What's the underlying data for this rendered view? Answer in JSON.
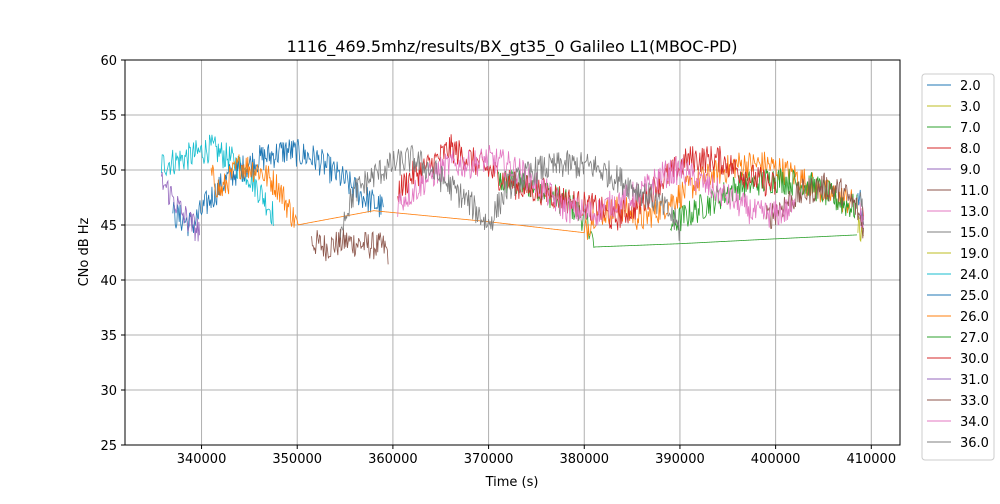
{
  "chart_data": {
    "type": "line",
    "title": "1116_469.5mhz/results/BX_gt35_0 Galileo L1(MBOC-PD)",
    "xlabel": "Time (s)",
    "ylabel": "CNo dB Hz",
    "xlim": [
      332000,
      413000
    ],
    "ylim": [
      25,
      60
    ],
    "xticks": [
      340000,
      350000,
      360000,
      370000,
      380000,
      390000,
      400000,
      410000
    ],
    "xtick_labels": [
      "340000",
      "350000",
      "360000",
      "370000",
      "380000",
      "390000",
      "400000",
      "410000"
    ],
    "yticks": [
      25,
      30,
      35,
      40,
      45,
      50,
      55,
      60
    ],
    "ytick_labels": [
      "25",
      "30",
      "35",
      "40",
      "45",
      "50",
      "55",
      "60"
    ],
    "grid": true,
    "legend_position": "right, outside plot area",
    "series": [
      {
        "name": "2.0",
        "color": "#1f77b4",
        "points": [
          [
            408600,
            47.5
          ],
          [
            409000,
            46.5
          ]
        ]
      },
      {
        "name": "3.0",
        "color": "#bcbd22",
        "points": [
          [
            408900,
            44.5
          ],
          [
            409100,
            43.5
          ]
        ]
      },
      {
        "name": "7.0",
        "color": "#2ca02c",
        "points": [
          [
            371000,
            49.0
          ],
          [
            375000,
            48.5
          ],
          [
            377000,
            47.5
          ],
          [
            379000,
            46.5
          ],
          [
            380500,
            45.0
          ],
          [
            381000,
            43.0
          ],
          [
            390000,
            43.3
          ],
          [
            399000,
            43.7
          ],
          [
            408500,
            44.1
          ]
        ]
      },
      {
        "name": "8.0",
        "color": "#d62728",
        "points": [
          [
            409000,
            46.0
          ],
          [
            409200,
            45.0
          ]
        ]
      },
      {
        "name": "9.0",
        "color": "#9467bd",
        "points": [
          [
            408800,
            46.5
          ],
          [
            409200,
            45.5
          ]
        ]
      },
      {
        "name": "11.0",
        "color": "#8c564b",
        "points": [
          [
            351500,
            43.5
          ],
          [
            353000,
            43.0
          ],
          [
            355000,
            43.5
          ],
          [
            357000,
            43.2
          ],
          [
            359000,
            43.0
          ],
          [
            359500,
            42.5
          ]
        ]
      },
      {
        "name": "13.0",
        "color": "#e377c2",
        "points": [
          [
            408800,
            46.0
          ],
          [
            409200,
            45.0
          ]
        ]
      },
      {
        "name": "15.0",
        "color": "#7f7f7f",
        "points": [
          [
            408800,
            47.0
          ],
          [
            409200,
            46.0
          ]
        ]
      },
      {
        "name": "19.0",
        "color": "#bcbd22",
        "points": [
          [
            408600,
            45.0
          ],
          [
            408900,
            44.0
          ],
          [
            409200,
            43.5
          ]
        ]
      },
      {
        "name": "24.0",
        "color": "#17becf",
        "points": [
          [
            335800,
            50.5
          ],
          [
            338000,
            51.0
          ],
          [
            341000,
            52.0
          ],
          [
            343000,
            51.0
          ],
          [
            345000,
            49.5
          ],
          [
            346500,
            47.5
          ],
          [
            347500,
            46.0
          ]
        ]
      },
      {
        "name": "25.0",
        "color": "#1f77b4",
        "points": [
          [
            337000,
            46.0
          ],
          [
            339000,
            45.0
          ],
          [
            341000,
            47.5
          ],
          [
            343000,
            49.5
          ],
          [
            346000,
            51.0
          ],
          [
            349000,
            51.8
          ],
          [
            352000,
            51.0
          ],
          [
            355000,
            49.0
          ],
          [
            357000,
            47.5
          ],
          [
            359000,
            46.5
          ]
        ]
      },
      {
        "name": "26.0",
        "color": "#ff7f0e",
        "points": [
          [
            341000,
            49.5
          ],
          [
            342000,
            48.0
          ],
          [
            344000,
            50.5
          ],
          [
            346000,
            50.0
          ],
          [
            348000,
            48.5
          ],
          [
            350000,
            45.0
          ],
          [
            358000,
            46.3
          ],
          [
            370000,
            45.3
          ],
          [
            380000,
            44.3
          ],
          [
            381000,
            46.0
          ],
          [
            384000,
            46.5
          ],
          [
            386000,
            45.5
          ],
          [
            388000,
            46.5
          ],
          [
            392000,
            49.0
          ],
          [
            396000,
            50.5
          ],
          [
            399000,
            50.5
          ],
          [
            402000,
            49.5
          ],
          [
            405000,
            48.0
          ],
          [
            408000,
            47.0
          ]
        ]
      },
      {
        "name": "27.0",
        "color": "#2ca02c",
        "points": [
          [
            389000,
            45.0
          ],
          [
            391000,
            46.0
          ],
          [
            393000,
            47.0
          ],
          [
            396000,
            48.5
          ],
          [
            400000,
            49.2
          ],
          [
            404000,
            48.5
          ],
          [
            407000,
            47.0
          ],
          [
            408500,
            46.5
          ]
        ]
      },
      {
        "name": "30.0",
        "color": "#d62728",
        "points": [
          [
            360500,
            48.0
          ],
          [
            362000,
            49.5
          ],
          [
            364000,
            50.5
          ],
          [
            366000,
            52.0
          ],
          [
            368000,
            51.0
          ],
          [
            370000,
            50.0
          ],
          [
            373000,
            48.5
          ],
          [
            376000,
            48.0
          ],
          [
            379000,
            47.0
          ],
          [
            381500,
            46.5
          ],
          [
            383000,
            45.5
          ],
          [
            386000,
            47.0
          ],
          [
            388000,
            49.0
          ],
          [
            391000,
            51.0
          ],
          [
            394000,
            51.0
          ],
          [
            397000,
            49.5
          ],
          [
            400000,
            48.5
          ]
        ]
      },
      {
        "name": "31.0",
        "color": "#9467bd",
        "points": [
          [
            335800,
            49.0
          ],
          [
            337000,
            47.5
          ],
          [
            338000,
            46.0
          ],
          [
            339000,
            45.0
          ],
          [
            339800,
            44.5
          ]
        ]
      },
      {
        "name": "33.0",
        "color": "#8c564b",
        "points": [
          [
            399000,
            45.5
          ],
          [
            401000,
            47.0
          ],
          [
            403000,
            48.0
          ],
          [
            405000,
            48.5
          ],
          [
            407000,
            48.0
          ],
          [
            408500,
            46.5
          ],
          [
            409200,
            44.5
          ]
        ]
      },
      {
        "name": "34.0",
        "color": "#e377c2",
        "points": [
          [
            360500,
            47.0
          ],
          [
            362000,
            48.0
          ],
          [
            364000,
            49.5
          ],
          [
            366000,
            50.5
          ],
          [
            368000,
            50.5
          ],
          [
            370000,
            51.0
          ],
          [
            372000,
            50.5
          ],
          [
            374000,
            49.5
          ],
          [
            376000,
            48.0
          ],
          [
            378000,
            46.5
          ],
          [
            381000,
            46.0
          ],
          [
            383000,
            47.0
          ],
          [
            386000,
            48.0
          ],
          [
            388000,
            49.5
          ],
          [
            390000,
            50.0
          ],
          [
            392000,
            49.0
          ],
          [
            394000,
            48.0
          ],
          [
            396000,
            47.0
          ],
          [
            398000,
            46.0
          ],
          [
            400000,
            46.0
          ],
          [
            402000,
            46.5
          ]
        ]
      },
      {
        "name": "36.0",
        "color": "#7f7f7f",
        "points": [
          [
            354500,
            45.0
          ],
          [
            356000,
            48.0
          ],
          [
            358000,
            49.5
          ],
          [
            360000,
            50.5
          ],
          [
            362000,
            51.0
          ],
          [
            364000,
            50.0
          ],
          [
            366000,
            48.5
          ],
          [
            368000,
            47.0
          ],
          [
            370000,
            45.0
          ],
          [
            372000,
            48.5
          ],
          [
            375000,
            50.0
          ],
          [
            378000,
            50.5
          ],
          [
            381000,
            50.3
          ],
          [
            384000,
            49.0
          ],
          [
            387000,
            47.5
          ],
          [
            389000,
            46.0
          ],
          [
            390000,
            44.5
          ]
        ]
      }
    ]
  }
}
